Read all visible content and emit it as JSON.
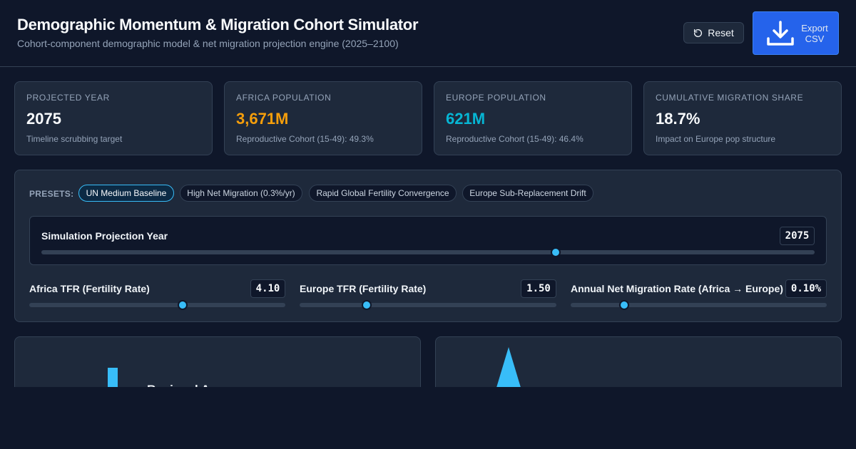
{
  "header": {
    "title": "Demographic Momentum & Migration Cohort Simulator",
    "subtitle": "Cohort-component demographic model & net migration projection engine (2025–2100)",
    "reset_label": "Reset",
    "export_label": "Export CSV"
  },
  "cards": [
    {
      "label": "Projected Year",
      "value": "2075",
      "sub": "Timeline scrubbing target",
      "color": "#f8fafc"
    },
    {
      "label": "Africa Population",
      "value": "3,671M",
      "sub": "Reproductive Cohort (15-49): 49.3%",
      "color": "#f59e0b"
    },
    {
      "label": "Europe Population",
      "value": "621M",
      "sub": "Reproductive Cohort (15-49): 46.4%",
      "color": "#06b6d4"
    },
    {
      "label": "Cumulative Migration Share",
      "value": "18.7%",
      "sub": "Impact on Europe pop structure",
      "color": "#f8fafc"
    }
  ],
  "presets": {
    "label": "PRESETS:",
    "items": [
      {
        "label": "UN Medium Baseline",
        "active": true
      },
      {
        "label": "High Net Migration (0.3%/yr)",
        "active": false
      },
      {
        "label": "Rapid Global Fertility Convergence",
        "active": false
      },
      {
        "label": "Europe Sub-Replacement Drift",
        "active": false
      }
    ]
  },
  "sliders": {
    "year": {
      "label": "Simulation Projection Year",
      "value": "2075",
      "fraction": 0.665
    },
    "africa_tfr": {
      "label": "Africa TFR (Fertility Rate)",
      "value": "4.10",
      "fraction": 0.6
    },
    "europe_tfr": {
      "label": "Europe TFR (Fertility Rate)",
      "value": "1.50",
      "fraction": 0.26
    },
    "migration": {
      "label": "Annual Net Migration Rate (Africa → Europe)",
      "value": "0.10%",
      "fraction": 0.21
    }
  },
  "panels": {
    "left_heading": "Regional A"
  },
  "colors": {
    "accent": "#38bdf8",
    "africa": "#f59e0b",
    "europe": "#06b6d4",
    "export": "#2563eb"
  }
}
